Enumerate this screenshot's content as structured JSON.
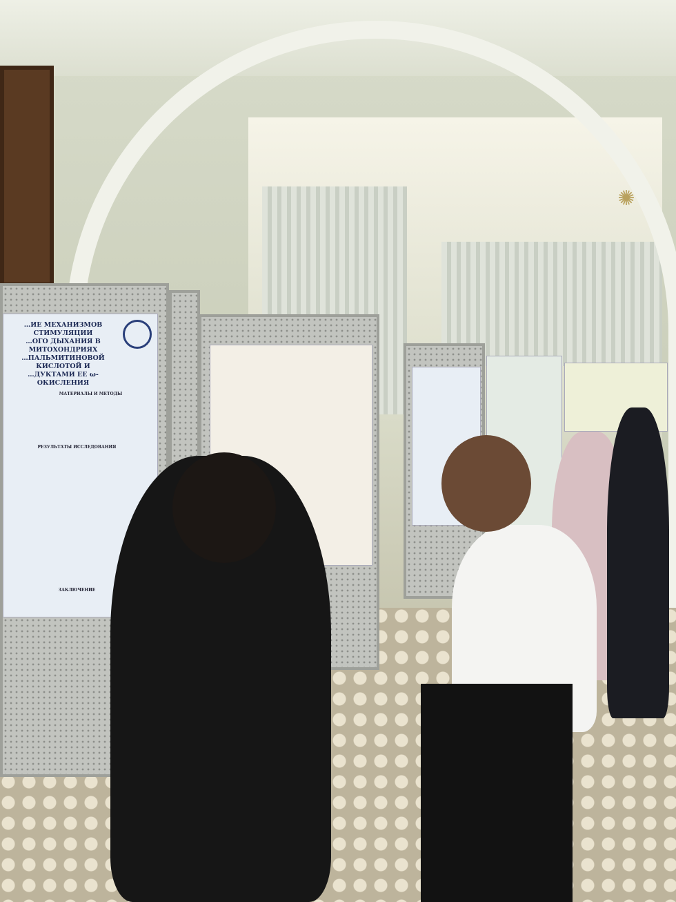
{
  "scene": "poster session in a corridor with arched ceiling",
  "left_poster": {
    "title_lines": [
      "…ИЕ МЕХАНИЗМОВ СТИМУЛЯЦИИ",
      "…ОГО ДЫХАНИЯ В МИТОХОНДРИЯХ",
      "…ПАЛЬМИТИНОВОЙ КИСЛОТОЙ И",
      "…ДУКТАМИ ЕЕ ω-ОКИСЛЕНИЯ"
    ],
    "section_methods": "МАТЕРИАЛЫ И МЕТОДЫ",
    "section_results": "РЕЗУЛЬТАТЫ ИССЛЕДОВАНИЯ",
    "section_conclusion": "ЗАКЛЮЧЕНИЕ"
  },
  "colors": {
    "wall": "#d8dccb",
    "poster_blue": "#1d2a55",
    "jacket": "#1a1a1a",
    "shirt": "#f4f4f2"
  }
}
